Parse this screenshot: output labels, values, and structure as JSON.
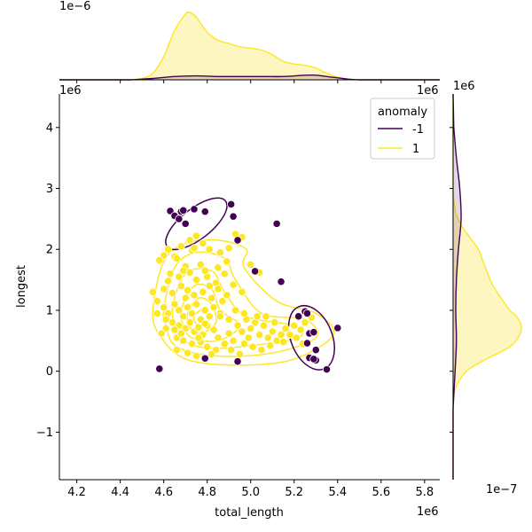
{
  "chart_data": {
    "type": "scatter",
    "xlabel": "total_length",
    "ylabel": "longest",
    "x_offset_label": "1e6",
    "y_offset_label": "1e6",
    "top_marginal_offset_label": "1e−6",
    "right_marginal_offset_label": "1e−7",
    "top_marginal_right_offset_label": "1e6",
    "right_marginal_top_offset_label": "1e6",
    "xlim": [
      4.12,
      5.87
    ],
    "ylim": [
      -1.78,
      4.55
    ],
    "xticks": [
      4.2,
      4.4,
      4.6,
      4.8,
      5.0,
      5.2,
      5.4,
      5.6,
      5.8
    ],
    "xtick_labels": [
      "4.2",
      "4.4",
      "4.6",
      "4.8",
      "5.0",
      "5.2",
      "5.4",
      "5.6",
      "5.8"
    ],
    "yticks": [
      -1,
      0,
      1,
      2,
      3,
      4
    ],
    "ytick_labels": [
      "−1",
      "0",
      "1",
      "2",
      "3",
      "4"
    ],
    "legend": {
      "title": "anomaly",
      "position": "top-right"
    },
    "colors": {
      "anomaly": "#440154",
      "normal": "#fde725",
      "normal_fill": "#fef5b9"
    },
    "grid": false,
    "series": [
      {
        "name": "-1",
        "color": "#440154",
        "points": [
          [
            4.63,
            2.63
          ],
          [
            4.65,
            2.55
          ],
          [
            4.67,
            2.5
          ],
          [
            4.68,
            2.62
          ],
          [
            4.69,
            2.64
          ],
          [
            4.7,
            2.42
          ],
          [
            4.74,
            2.66
          ],
          [
            4.79,
            2.62
          ],
          [
            4.91,
            2.74
          ],
          [
            4.92,
            2.54
          ],
          [
            4.94,
            2.15
          ],
          [
            5.12,
            2.42
          ],
          [
            5.14,
            1.47
          ],
          [
            5.02,
            1.64
          ],
          [
            4.58,
            0.04
          ],
          [
            4.79,
            0.21
          ],
          [
            4.94,
            0.16
          ],
          [
            5.22,
            0.9
          ],
          [
            5.25,
            0.98
          ],
          [
            5.26,
            0.95
          ],
          [
            5.27,
            0.62
          ],
          [
            5.26,
            0.46
          ],
          [
            5.29,
            0.64
          ],
          [
            5.3,
            0.35
          ],
          [
            5.3,
            0.18
          ],
          [
            5.27,
            0.22
          ],
          [
            5.29,
            0.2
          ],
          [
            5.35,
            0.03
          ],
          [
            5.4,
            0.71
          ]
        ]
      },
      {
        "name": "1",
        "color": "#fde725",
        "points": [
          [
            4.6,
            1.9
          ],
          [
            4.62,
            2.0
          ],
          [
            4.65,
            1.88
          ],
          [
            4.68,
            2.05
          ],
          [
            4.72,
            2.15
          ],
          [
            4.75,
            2.22
          ],
          [
            4.78,
            2.1
          ],
          [
            4.73,
            1.98
          ],
          [
            4.81,
            2.0
          ],
          [
            4.86,
            1.95
          ],
          [
            4.9,
            2.02
          ],
          [
            4.93,
            2.25
          ],
          [
            4.96,
            2.2
          ],
          [
            4.85,
            1.7
          ],
          [
            4.89,
            1.8
          ],
          [
            4.66,
            1.85
          ],
          [
            4.7,
            1.72
          ],
          [
            4.77,
            1.75
          ],
          [
            4.63,
            1.6
          ],
          [
            4.67,
            1.55
          ],
          [
            4.72,
            1.62
          ],
          [
            4.75,
            1.5
          ],
          [
            4.8,
            1.55
          ],
          [
            4.84,
            1.45
          ],
          [
            4.88,
            1.6
          ],
          [
            4.92,
            1.42
          ],
          [
            4.96,
            1.3
          ],
          [
            4.6,
            1.35
          ],
          [
            4.64,
            1.28
          ],
          [
            4.68,
            1.4
          ],
          [
            4.71,
            1.33
          ],
          [
            4.74,
            1.25
          ],
          [
            4.78,
            1.3
          ],
          [
            4.82,
            1.2
          ],
          [
            4.85,
            1.35
          ],
          [
            4.89,
            1.25
          ],
          [
            4.55,
            1.3
          ],
          [
            4.57,
            1.15
          ],
          [
            4.6,
            1.05
          ],
          [
            4.62,
            0.95
          ],
          [
            4.65,
            1.1
          ],
          [
            4.67,
            1.0
          ],
          [
            4.69,
            0.9
          ],
          [
            4.71,
            1.05
          ],
          [
            4.73,
            0.95
          ],
          [
            4.75,
            1.1
          ],
          [
            4.77,
            0.85
          ],
          [
            4.79,
            1.0
          ],
          [
            4.81,
            0.9
          ],
          [
            4.83,
            1.05
          ],
          [
            4.86,
            0.95
          ],
          [
            4.9,
            0.85
          ],
          [
            4.64,
            0.8
          ],
          [
            4.67,
            0.75
          ],
          [
            4.7,
            0.7
          ],
          [
            4.72,
            0.8
          ],
          [
            4.74,
            0.65
          ],
          [
            4.76,
            0.72
          ],
          [
            4.78,
            0.6
          ],
          [
            4.8,
            0.75
          ],
          [
            4.83,
            0.68
          ],
          [
            4.85,
            0.55
          ],
          [
            4.61,
            0.7
          ],
          [
            4.59,
            0.62
          ],
          [
            4.66,
            0.55
          ],
          [
            4.69,
            0.5
          ],
          [
            4.73,
            0.45
          ],
          [
            4.77,
            0.48
          ],
          [
            4.8,
            0.4
          ],
          [
            4.84,
            0.35
          ],
          [
            4.88,
            0.45
          ],
          [
            4.92,
            0.5
          ],
          [
            4.66,
            0.35
          ],
          [
            4.71,
            0.3
          ],
          [
            4.75,
            0.25
          ],
          [
            4.82,
            0.28
          ],
          [
            4.91,
            0.35
          ],
          [
            4.95,
            0.28
          ],
          [
            4.94,
            0.75
          ],
          [
            4.96,
            0.65
          ],
          [
            4.98,
            0.85
          ],
          [
            5.0,
            0.7
          ],
          [
            5.02,
            0.8
          ],
          [
            5.04,
            0.6
          ],
          [
            5.06,
            0.75
          ],
          [
            5.08,
            0.55
          ],
          [
            5.1,
            0.65
          ],
          [
            5.12,
            0.5
          ],
          [
            4.97,
            0.45
          ],
          [
            5.01,
            0.4
          ],
          [
            5.05,
            0.35
          ],
          [
            5.09,
            0.42
          ],
          [
            5.14,
            0.6
          ],
          [
            5.16,
            0.7
          ],
          [
            5.2,
            0.75
          ],
          [
            5.23,
            0.68
          ],
          [
            5.25,
            0.8
          ],
          [
            5.28,
            0.88
          ],
          [
            5.21,
            0.55
          ],
          [
            5.24,
            0.45
          ],
          [
            5.0,
            1.75
          ],
          [
            5.04,
            1.62
          ],
          [
            4.86,
            0.9
          ],
          [
            4.79,
            0.78
          ],
          [
            4.7,
            1.2
          ],
          [
            4.62,
            1.48
          ],
          [
            4.58,
            1.82
          ],
          [
            4.57,
            0.95
          ],
          [
            4.61,
            0.85
          ],
          [
            4.68,
            0.62
          ],
          [
            4.76,
            0.55
          ],
          [
            4.87,
            1.15
          ],
          [
            4.93,
            1.0
          ],
          [
            4.97,
            0.95
          ],
          [
            5.03,
            0.9
          ],
          [
            5.07,
            0.9
          ],
          [
            4.74,
            2.02
          ],
          [
            4.69,
            1.65
          ],
          [
            4.81,
            1.4
          ],
          [
            4.79,
            1.65
          ],
          [
            4.65,
            0.68
          ],
          [
            4.9,
            0.62
          ],
          [
            5.11,
            0.8
          ],
          [
            5.18,
            0.6
          ],
          [
            5.15,
            0.48
          ],
          [
            4.99,
            0.55
          ]
        ]
      }
    ],
    "kde_contours": [
      {
        "series": "1",
        "levels": [
          [
            [
              4.55,
              1.0
            ],
            [
              4.6,
              1.8
            ],
            [
              4.7,
              2.1
            ],
            [
              4.85,
              2.15
            ],
            [
              4.98,
              2.0
            ],
            [
              4.97,
              1.7
            ],
            [
              5.12,
              1.15
            ],
            [
              5.3,
              0.95
            ],
            [
              5.38,
              0.6
            ],
            [
              5.2,
              0.2
            ],
            [
              4.95,
              0.1
            ],
            [
              4.7,
              0.2
            ],
            [
              4.58,
              0.6
            ]
          ],
          [
            [
              4.6,
              1.0
            ],
            [
              4.65,
              1.7
            ],
            [
              4.75,
              1.95
            ],
            [
              4.88,
              1.85
            ],
            [
              4.93,
              1.5
            ],
            [
              5.05,
              0.95
            ],
            [
              5.25,
              0.85
            ],
            [
              5.3,
              0.55
            ],
            [
              5.1,
              0.3
            ],
            [
              4.85,
              0.25
            ],
            [
              4.66,
              0.4
            ],
            [
              4.61,
              0.75
            ]
          ],
          [
            [
              4.64,
              1.0
            ],
            [
              4.7,
              1.6
            ],
            [
              4.82,
              1.65
            ],
            [
              4.88,
              1.3
            ],
            [
              4.98,
              0.9
            ],
            [
              5.2,
              0.75
            ],
            [
              5.22,
              0.55
            ],
            [
              5.0,
              0.42
            ],
            [
              4.8,
              0.38
            ],
            [
              4.68,
              0.55
            ]
          ],
          [
            [
              4.68,
              1.0
            ],
            [
              4.74,
              1.4
            ],
            [
              4.82,
              1.35
            ],
            [
              4.86,
              1.0
            ],
            [
              4.95,
              0.75
            ],
            [
              4.85,
              0.5
            ],
            [
              4.73,
              0.55
            ],
            [
              4.69,
              0.75
            ]
          ],
          [
            [
              4.71,
              0.95
            ],
            [
              4.76,
              1.2
            ],
            [
              4.82,
              1.1
            ],
            [
              4.84,
              0.8
            ],
            [
              4.77,
              0.62
            ],
            [
              4.72,
              0.72
            ]
          ],
          [
            [
              4.74,
              0.9
            ],
            [
              4.78,
              1.02
            ],
            [
              4.81,
              0.9
            ],
            [
              4.79,
              0.75
            ],
            [
              4.75,
              0.78
            ]
          ]
        ]
      },
      {
        "series": "-1",
        "levels": [
          {
            "cx": 4.75,
            "cy": 2.42,
            "rx": 0.17,
            "ry": 0.25,
            "angle": -38
          },
          {
            "cx": 5.28,
            "cy": 0.55,
            "rx": 0.095,
            "ry": 0.55,
            "angle": -22
          }
        ]
      }
    ],
    "marginal_x": {
      "series": [
        {
          "name": "1",
          "x": [
            4.45,
            4.5,
            4.55,
            4.6,
            4.65,
            4.7,
            4.72,
            4.75,
            4.8,
            4.85,
            4.9,
            4.95,
            5.0,
            5.05,
            5.1,
            5.15,
            5.2,
            5.25,
            5.3,
            5.35,
            5.4,
            5.45,
            5.5
          ],
          "density": [
            0.0,
            0.02,
            0.1,
            0.35,
            0.75,
            1.0,
            1.02,
            0.95,
            0.72,
            0.6,
            0.55,
            0.5,
            0.48,
            0.45,
            0.38,
            0.28,
            0.24,
            0.22,
            0.18,
            0.1,
            0.04,
            0.01,
            0.0
          ]
        },
        {
          "name": "-1",
          "x": [
            4.45,
            4.55,
            4.65,
            4.75,
            4.85,
            4.95,
            5.05,
            5.15,
            5.25,
            5.3,
            5.35,
            5.45,
            5.5
          ],
          "density": [
            0.0,
            0.02,
            0.05,
            0.06,
            0.05,
            0.05,
            0.05,
            0.05,
            0.07,
            0.07,
            0.05,
            0.01,
            0.0
          ]
        }
      ]
    },
    "marginal_y": {
      "series": [
        {
          "name": "1",
          "y": [
            -0.6,
            -0.3,
            0.0,
            0.2,
            0.4,
            0.6,
            0.75,
            0.9,
            1.0,
            1.2,
            1.4,
            1.6,
            1.8,
            2.0,
            2.2,
            2.4,
            2.6,
            2.9
          ],
          "density": [
            0.0,
            0.03,
            0.2,
            0.5,
            0.85,
            1.0,
            1.02,
            0.95,
            0.85,
            0.72,
            0.6,
            0.52,
            0.45,
            0.38,
            0.25,
            0.12,
            0.04,
            0.0
          ]
        },
        {
          "name": "-1",
          "y": [
            -0.6,
            0.0,
            0.5,
            1.0,
            1.5,
            2.0,
            2.5,
            3.0,
            3.5,
            4.0
          ],
          "density": [
            0.0,
            0.03,
            0.05,
            0.04,
            0.05,
            0.08,
            0.12,
            0.1,
            0.05,
            0.01
          ]
        }
      ]
    }
  }
}
